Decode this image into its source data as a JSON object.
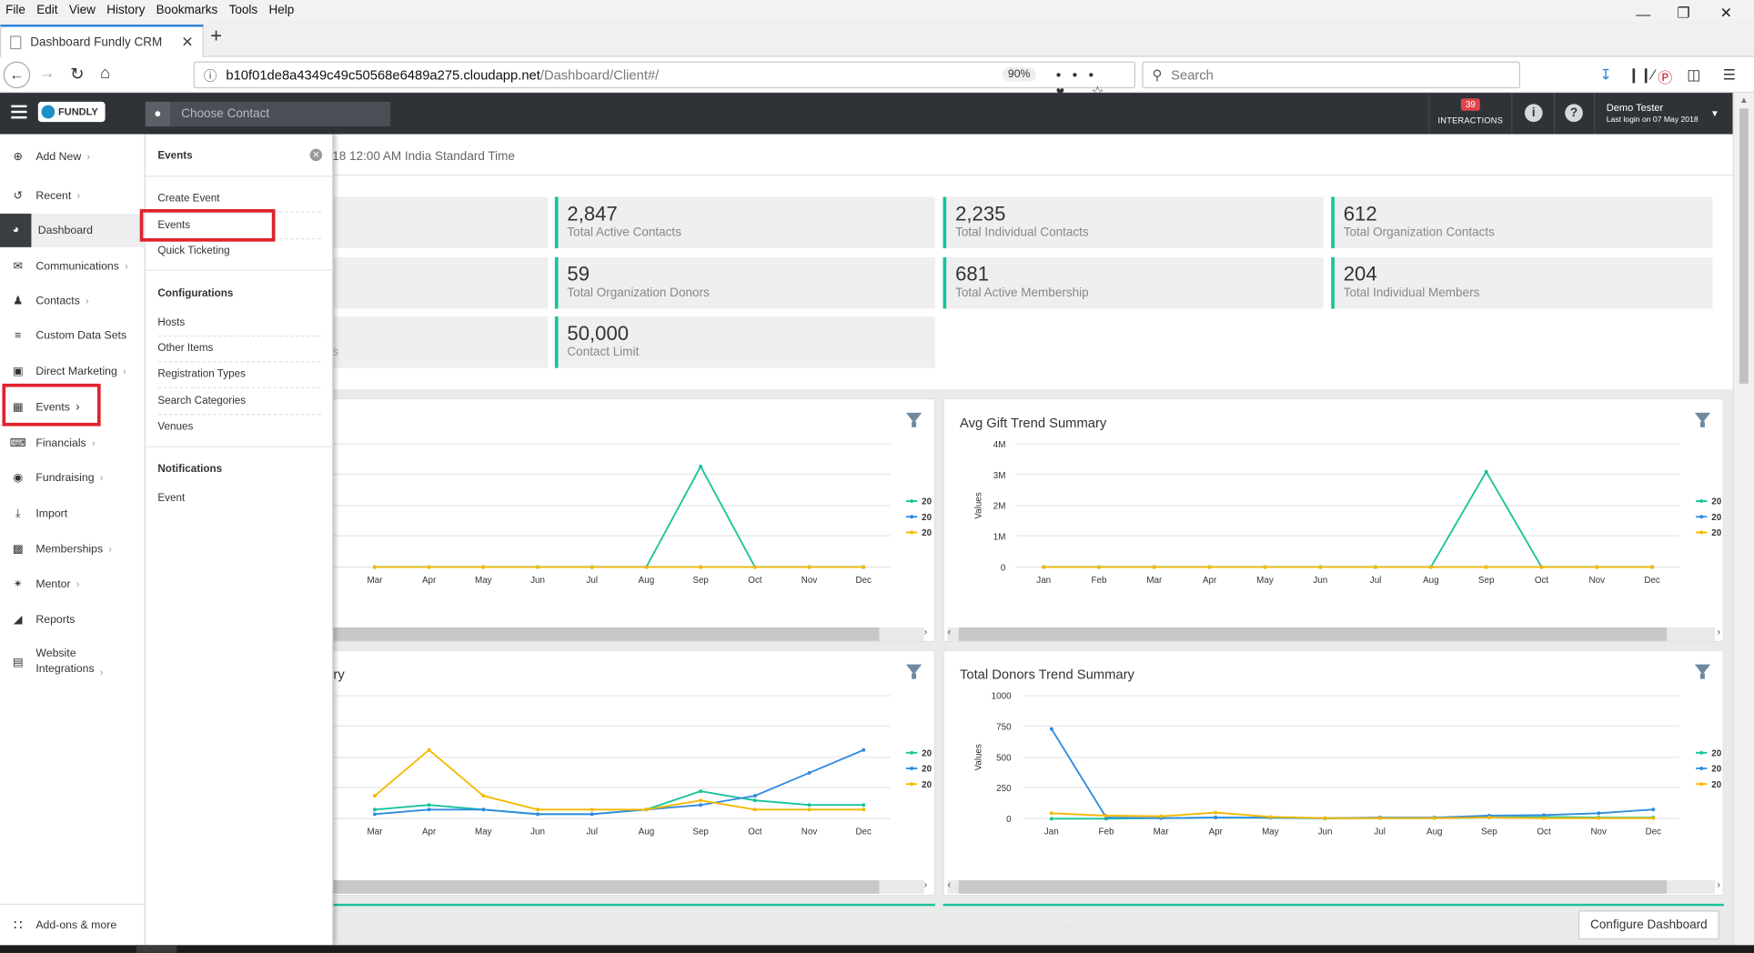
{
  "browser": {
    "menu": [
      "File",
      "Edit",
      "View",
      "History",
      "Bookmarks",
      "Tools",
      "Help"
    ],
    "tab_title": "Dashboard Fundly CRM",
    "url_host": "b10f01de8a4349c49c50568e6489a275.cloudapp.net",
    "url_path": "/Dashboard/Client#/",
    "zoom": "90%",
    "search_placeholder": "Search"
  },
  "header": {
    "logo": "FUNDLY",
    "choose_contact": "Choose Contact",
    "interactions_count": "39",
    "interactions_label": "INTERACTIONS",
    "user_name": "Demo Tester",
    "last_login": "Last login on 07 May 2018"
  },
  "sidebar": {
    "items": [
      {
        "label": "Add New",
        "icon": "plus-circle-icon"
      },
      {
        "label": "Recent",
        "icon": "history-icon"
      },
      {
        "label": "Dashboard",
        "icon": "dashboard-icon"
      },
      {
        "label": "Communications",
        "icon": "envelope-icon"
      },
      {
        "label": "Contacts",
        "icon": "user-icon"
      },
      {
        "label": "Custom Data Sets",
        "icon": "layers-icon"
      },
      {
        "label": "Direct Marketing",
        "icon": "mailbox-icon"
      },
      {
        "label": "Events",
        "icon": "calendar-icon"
      },
      {
        "label": "Financials",
        "icon": "money-icon"
      },
      {
        "label": "Fundraising",
        "icon": "moneybag-icon"
      },
      {
        "label": "Import",
        "icon": "import-icon"
      },
      {
        "label": "Memberships",
        "icon": "id-card-icon"
      },
      {
        "label": "Mentor",
        "icon": "mentor-icon"
      },
      {
        "label": "Reports",
        "icon": "chart-icon"
      },
      {
        "label": "Website",
        "label2": "Integrations",
        "icon": "website-icon"
      }
    ],
    "addons": "Add-ons & more"
  },
  "submenu": {
    "title": "Events",
    "items1": [
      "Create Event",
      "Events",
      "Quick Ticketing"
    ],
    "config_title": "Configurations",
    "items2": [
      "Hosts",
      "Other Items",
      "Registration Types",
      "Search Categories",
      "Venues"
    ],
    "notif_title": "Notifications",
    "items3": [
      "Event"
    ]
  },
  "main": {
    "timezone": "18 12:00 AM India Standard Time",
    "stats": [
      {
        "value": "2,847",
        "label": "Total Active Contacts"
      },
      {
        "value": "2,235",
        "label": "Total Individual Contacts"
      },
      {
        "value": "612",
        "label": "Total Organization Contacts"
      },
      {
        "value": "59",
        "label": "Total Organization Donors"
      },
      {
        "value": "681",
        "label": "Total Active Membership"
      },
      {
        "value": "204",
        "label": "Total Individual Members"
      },
      {
        "value": "50,000",
        "label": "Contact Limit"
      }
    ],
    "partial_stat_fragment": "s",
    "configure_button": "Configure Dashboard",
    "donor_recency": "Donor Recency Chart"
  },
  "chart_data": [
    {
      "type": "line",
      "title": "",
      "categories": [
        "Mar",
        "Apr",
        "May",
        "Jun",
        "Jul",
        "Aug",
        "Sep",
        "Oct",
        "Nov",
        "Dec"
      ],
      "series": [
        {
          "name": "20",
          "color": "#19c39b",
          "values": [
            0,
            0,
            0,
            0,
            0,
            0,
            1,
            0,
            0,
            0
          ]
        },
        {
          "name": "20",
          "color": "#2f8be0",
          "values": [
            0,
            0,
            0,
            0,
            0,
            0,
            0,
            0,
            0,
            0
          ]
        },
        {
          "name": "20",
          "color": "#f5b800",
          "values": [
            0,
            0,
            0,
            0,
            0,
            0,
            0,
            0,
            0,
            0
          ]
        }
      ]
    },
    {
      "type": "line",
      "title": "Avg Gift Trend Summary",
      "ylabel": "Values",
      "yticks": [
        "0",
        "1M",
        "2M",
        "3M",
        "4M"
      ],
      "ylim": [
        0,
        4000000
      ],
      "categories": [
        "Jan",
        "Feb",
        "Mar",
        "Apr",
        "May",
        "Jun",
        "Jul",
        "Aug",
        "Sep",
        "Oct",
        "Nov",
        "Dec"
      ],
      "series": [
        {
          "name": "20",
          "color": "#19c39b",
          "values": [
            0,
            0,
            0,
            0,
            0,
            0,
            0,
            0,
            3100000,
            0,
            0,
            0
          ]
        },
        {
          "name": "20",
          "color": "#2f8be0",
          "values": [
            0,
            0,
            0,
            0,
            0,
            0,
            0,
            0,
            0,
            0,
            0,
            0
          ]
        },
        {
          "name": "20",
          "color": "#f5b800",
          "values": [
            0,
            0,
            0,
            0,
            0,
            0,
            0,
            0,
            0,
            0,
            0,
            0
          ]
        }
      ]
    },
    {
      "type": "line",
      "title": "ry",
      "categories": [
        "Mar",
        "Apr",
        "May",
        "Jun",
        "Jul",
        "Aug",
        "Sep",
        "Oct",
        "Nov",
        "Dec"
      ],
      "series": [
        {
          "name": "20",
          "color": "#19c39b",
          "values": [
            2,
            3,
            2,
            1,
            1,
            2,
            6,
            4,
            3,
            3
          ]
        },
        {
          "name": "20",
          "color": "#2f8be0",
          "values": [
            1,
            2,
            2,
            1,
            1,
            2,
            3,
            5,
            10,
            15
          ]
        },
        {
          "name": "20",
          "color": "#f5b800",
          "values": [
            5,
            15,
            5,
            2,
            2,
            2,
            4,
            2,
            2,
            2
          ]
        }
      ]
    },
    {
      "type": "line",
      "title": "Total Donors Trend Summary",
      "ylabel": "Values",
      "yticks": [
        "0",
        "250",
        "500",
        "750",
        "1000"
      ],
      "ylim": [
        0,
        1000
      ],
      "categories": [
        "Jan",
        "Feb",
        "Mar",
        "Apr",
        "May",
        "Jun",
        "Jul",
        "Aug",
        "Sep",
        "Oct",
        "Nov",
        "Dec"
      ],
      "series": [
        {
          "name": "20",
          "color": "#19c39b",
          "values": [
            0,
            0,
            5,
            10,
            8,
            3,
            5,
            5,
            10,
            15,
            10,
            10
          ]
        },
        {
          "name": "20",
          "color": "#2f8be0",
          "values": [
            730,
            10,
            5,
            10,
            10,
            5,
            10,
            10,
            25,
            30,
            45,
            75
          ]
        },
        {
          "name": "20",
          "color": "#f5b800",
          "values": [
            45,
            25,
            20,
            50,
            15,
            5,
            5,
            5,
            10,
            5,
            5,
            5
          ]
        }
      ]
    }
  ]
}
